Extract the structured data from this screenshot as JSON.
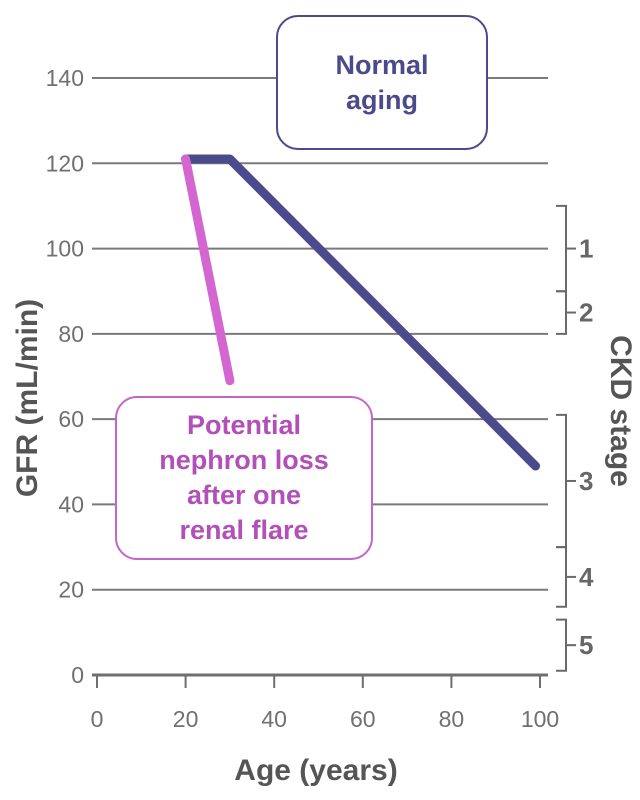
{
  "chart_data": {
    "type": "line",
    "xlabel": "Age (years)",
    "ylabel": "GFR (mL/min)",
    "xlim": [
      0,
      100
    ],
    "ylim": [
      0,
      140
    ],
    "x_ticks": [
      0,
      20,
      40,
      60,
      80,
      100
    ],
    "y_ticks": [
      0,
      20,
      40,
      60,
      80,
      100,
      120,
      140
    ],
    "grid": "horizontal",
    "series": [
      {
        "name": "Normal aging",
        "color": "#4b4a8c",
        "points": [
          [
            20,
            121
          ],
          [
            30,
            121
          ],
          [
            99,
            49
          ]
        ]
      },
      {
        "name": "Potential nephron loss after one renal flare",
        "color": "#d466d1",
        "points": [
          [
            20,
            121
          ],
          [
            30,
            69
          ]
        ]
      }
    ],
    "annotations": [
      {
        "id": "normal",
        "text": "Normal\naging",
        "color": "#4b4a8c"
      },
      {
        "id": "flare",
        "text": "Potential\nnephron loss\nafter one\nrenal flare",
        "color": "#b24fb8"
      }
    ],
    "ckd_axis": {
      "title": "CKD stage",
      "stages": [
        {
          "label": "1",
          "range": [
            90,
            110
          ]
        },
        {
          "label": "2",
          "range": [
            80,
            90
          ]
        },
        {
          "label": "3",
          "range": [
            30,
            61
          ]
        },
        {
          "label": "4",
          "range": [
            16,
            30
          ]
        },
        {
          "label": "5",
          "range": [
            1,
            13
          ]
        }
      ]
    }
  }
}
